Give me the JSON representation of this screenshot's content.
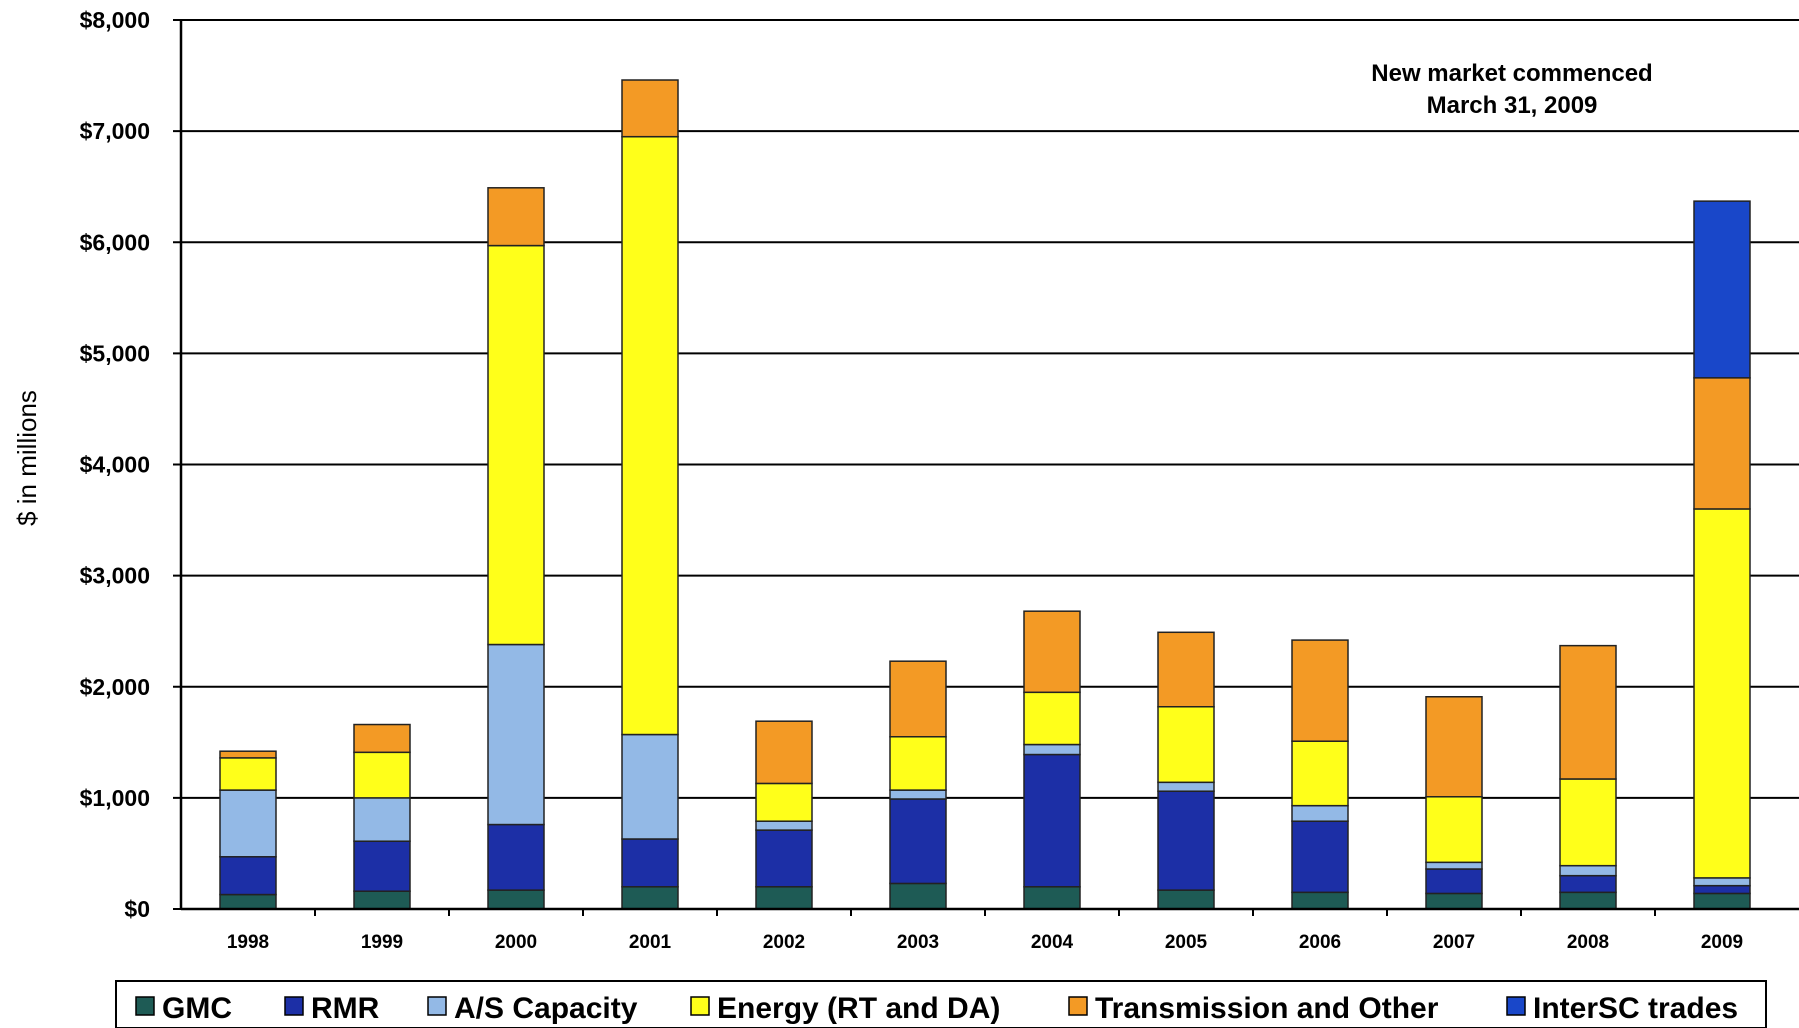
{
  "chart_data": {
    "type": "bar",
    "stacked": true,
    "title": "",
    "xlabel": "",
    "ylabel": "$ in millions",
    "ylim": [
      0,
      8000
    ],
    "yticks": [
      "$0",
      "$1,000",
      "$2,000",
      "$3,000",
      "$4,000",
      "$5,000",
      "$6,000",
      "$7,000",
      "$8,000"
    ],
    "categories": [
      "1998",
      "1999",
      "2000",
      "2001",
      "2002",
      "2003",
      "2004",
      "2005",
      "2006",
      "2007",
      "2008",
      "2009"
    ],
    "series": [
      {
        "name": "GMC",
        "color": "#1e5b55",
        "values": [
          130,
          160,
          170,
          200,
          200,
          230,
          200,
          170,
          150,
          140,
          150,
          140
        ]
      },
      {
        "name": "RMR",
        "color": "#1c2fa6",
        "values": [
          340,
          450,
          590,
          430,
          510,
          760,
          1190,
          890,
          640,
          220,
          150,
          70
        ]
      },
      {
        "name": "A/S Capacity",
        "color": "#93b9e6",
        "values": [
          600,
          390,
          1620,
          940,
          80,
          80,
          90,
          80,
          140,
          60,
          90,
          70
        ]
      },
      {
        "name": "Energy (RT and DA)",
        "color": "#ffff1a",
        "values": [
          290,
          410,
          3590,
          5380,
          340,
          480,
          470,
          680,
          580,
          590,
          780,
          3320
        ]
      },
      {
        "name": "Transmission and Other",
        "color": "#f39a25",
        "values": [
          60,
          250,
          520,
          510,
          560,
          680,
          730,
          670,
          910,
          900,
          1200,
          1180
        ]
      },
      {
        "name": "InterSC trades",
        "color": "#1947c9",
        "values": [
          0,
          0,
          0,
          0,
          0,
          0,
          0,
          0,
          0,
          0,
          0,
          1590
        ]
      }
    ],
    "annotation": [
      "New market commenced",
      "March 31, 2009"
    ],
    "grid": true,
    "legend_position": "bottom"
  }
}
